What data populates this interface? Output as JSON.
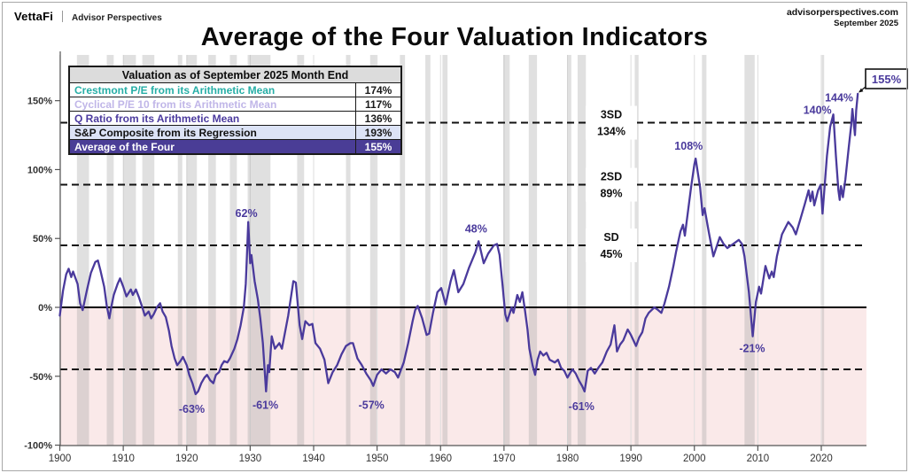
{
  "header": {
    "brand": "VettaFi",
    "brand_sub": "Advisor Perspectives",
    "site": "advisorperspectives.com",
    "date": "September 2025"
  },
  "title": "Average of the Four Valuation Indicators",
  "legend_table": {
    "title": "Valuation as of September 2025 Month End",
    "rows": [
      {
        "label": "Crestmont P/E from its Arithmetic Mean",
        "value": "174%",
        "label_color": "#26AEA6",
        "row_bg": "#FFFFFF",
        "value_color": "#1a1a1a"
      },
      {
        "label": "Cyclical P/E 10 from its Arithmetic Mean",
        "value": "117%",
        "label_color": "#C0B6E8",
        "row_bg": "#FFFFFF",
        "value_color": "#1a1a1a"
      },
      {
        "label": "Q Ratio from its Arithmetic Mean",
        "value": "136%",
        "label_color": "#4B3A9E",
        "row_bg": "#FFFFFF",
        "value_color": "#1a1a1a"
      },
      {
        "label": "S&P Composite from its Regression",
        "value": "193%",
        "label_color": "#111111",
        "row_bg": "#DCE3F6",
        "value_color": "#1a1a1a"
      },
      {
        "label": "Average of the Four",
        "value": "155%",
        "label_color": "#FFFFFF",
        "row_bg": "#4A3D96",
        "value_color": "#FFFFFF"
      }
    ]
  },
  "chart_data": {
    "type": "line",
    "title": "Average of the Four Valuation Indicators",
    "colors": {
      "line": "#4A3A9C",
      "annotation": "#4A3A9C",
      "below_zero_fill": "#FAE9E9",
      "recession_band": "rgba(160,160,160,0.32)",
      "gridline": "#DDDDDD",
      "sd_line": "#111111"
    },
    "x_axis": {
      "ticks": [
        1900,
        1910,
        1920,
        1930,
        1940,
        1950,
        1960,
        1970,
        1980,
        1990,
        2000,
        2010,
        2020
      ],
      "range": [
        1900,
        2027
      ]
    },
    "y_axis": {
      "ticks": [
        150,
        100,
        50,
        0,
        -50,
        -100
      ],
      "labels": [
        "150%",
        "100%",
        "50%",
        "0%",
        "-50%",
        "-100%"
      ],
      "range": [
        -100,
        183
      ]
    },
    "zero_line": 0,
    "sd_lines": [
      {
        "label": "3SD",
        "value_label": "134%",
        "value": 134
      },
      {
        "label": "2SD",
        "value_label": "89%",
        "value": 89
      },
      {
        "label": "SD",
        "value_label": "45%",
        "value": 45
      },
      {
        "label": null,
        "value_label": null,
        "value": -45
      }
    ],
    "recessions": [
      [
        1902.7,
        1904.6
      ],
      [
        1907.4,
        1908.5
      ],
      [
        1910.0,
        1912.0
      ],
      [
        1913.0,
        1914.9
      ],
      [
        1918.6,
        1919.3
      ],
      [
        1920.0,
        1921.6
      ],
      [
        1923.4,
        1924.6
      ],
      [
        1926.8,
        1927.9
      ],
      [
        1929.6,
        1933.2
      ],
      [
        1937.4,
        1938.5
      ],
      [
        1945.1,
        1945.8
      ],
      [
        1948.9,
        1949.9
      ],
      [
        1953.6,
        1954.4
      ],
      [
        1957.6,
        1958.4
      ],
      [
        1960.3,
        1961.1
      ],
      [
        1969.9,
        1970.9
      ],
      [
        1973.9,
        1975.2
      ],
      [
        1980.0,
        1980.6
      ],
      [
        1981.6,
        1982.9
      ],
      [
        1990.6,
        1991.2
      ],
      [
        2001.2,
        2001.9
      ],
      [
        2007.9,
        2009.5
      ],
      [
        2020.1,
        2020.4
      ]
    ],
    "annotations": [
      {
        "text": "62%",
        "x": 1929.4,
        "y": 68
      },
      {
        "text": "-63%",
        "x": 1920.8,
        "y": -74
      },
      {
        "text": "-61%",
        "x": 1932.4,
        "y": -71
      },
      {
        "text": "-57%",
        "x": 1949.1,
        "y": -71
      },
      {
        "text": "48%",
        "x": 1965.6,
        "y": 57
      },
      {
        "text": "-61%",
        "x": 1982.2,
        "y": -72
      },
      {
        "text": "108%",
        "x": 1999.1,
        "y": 117
      },
      {
        "text": "-21%",
        "x": 2009.1,
        "y": -30
      },
      {
        "text": "140%",
        "x": 2019.4,
        "y": 143
      },
      {
        "text": "144%",
        "x": 2022.8,
        "y": 152
      }
    ],
    "callout": {
      "text": "155%"
    },
    "series": [
      {
        "name": "Average of the Four",
        "color": "#4A3A9C",
        "points": [
          [
            1900,
            -6
          ],
          [
            1900.5,
            12
          ],
          [
            1901,
            24
          ],
          [
            1901.4,
            28
          ],
          [
            1901.8,
            22
          ],
          [
            1902.1,
            26
          ],
          [
            1902.8,
            17
          ],
          [
            1903.2,
            3
          ],
          [
            1903.6,
            -2
          ],
          [
            1904.3,
            13
          ],
          [
            1904.9,
            25
          ],
          [
            1905.6,
            33
          ],
          [
            1906,
            34
          ],
          [
            1906.4,
            27
          ],
          [
            1907,
            15
          ],
          [
            1907.4,
            1
          ],
          [
            1907.8,
            -8
          ],
          [
            1908.1,
            0
          ],
          [
            1908.5,
            9
          ],
          [
            1909.1,
            17
          ],
          [
            1909.5,
            21
          ],
          [
            1910,
            15
          ],
          [
            1910.5,
            8
          ],
          [
            1911.2,
            13
          ],
          [
            1911.5,
            9
          ],
          [
            1912,
            13
          ],
          [
            1912.5,
            7
          ],
          [
            1913,
            0
          ],
          [
            1913.4,
            -6
          ],
          [
            1914,
            -3
          ],
          [
            1914.4,
            -8
          ],
          [
            1914.8,
            -5
          ],
          [
            1915.3,
            0
          ],
          [
            1915.8,
            3
          ],
          [
            1916.2,
            -3
          ],
          [
            1916.7,
            -7
          ],
          [
            1917.2,
            -17
          ],
          [
            1917.6,
            -28
          ],
          [
            1918.1,
            -37
          ],
          [
            1918.5,
            -42
          ],
          [
            1919,
            -39
          ],
          [
            1919.4,
            -36
          ],
          [
            1920,
            -42
          ],
          [
            1920.4,
            -49
          ],
          [
            1920.9,
            -55
          ],
          [
            1921.4,
            -63
          ],
          [
            1921.8,
            -61
          ],
          [
            1922.3,
            -55
          ],
          [
            1922.8,
            -51
          ],
          [
            1923.2,
            -49
          ],
          [
            1923.7,
            -53
          ],
          [
            1924.2,
            -55
          ],
          [
            1924.6,
            -49
          ],
          [
            1925.1,
            -47
          ],
          [
            1925.5,
            -42
          ],
          [
            1925.9,
            -39
          ],
          [
            1926.4,
            -40
          ],
          [
            1926.8,
            -37
          ],
          [
            1927.5,
            -30
          ],
          [
            1928,
            -23
          ],
          [
            1928.5,
            -13
          ],
          [
            1929,
            0
          ],
          [
            1929.3,
            17
          ],
          [
            1929.5,
            39
          ],
          [
            1929.7,
            62
          ],
          [
            1929.9,
            41
          ],
          [
            1930,
            32
          ],
          [
            1930.2,
            38
          ],
          [
            1930.7,
            19
          ],
          [
            1931.2,
            6
          ],
          [
            1931.6,
            -8
          ],
          [
            1932,
            -26
          ],
          [
            1932.5,
            -61
          ],
          [
            1932.8,
            -42
          ],
          [
            1933,
            -47
          ],
          [
            1933.4,
            -21
          ],
          [
            1933.9,
            -30
          ],
          [
            1934.6,
            -26
          ],
          [
            1935,
            -30
          ],
          [
            1936,
            -6
          ],
          [
            1936.8,
            19
          ],
          [
            1937.2,
            18
          ],
          [
            1937.8,
            -13
          ],
          [
            1938.2,
            -23
          ],
          [
            1938.7,
            -10
          ],
          [
            1939.3,
            -13
          ],
          [
            1939.8,
            -12
          ],
          [
            1940.3,
            -26
          ],
          [
            1941,
            -30
          ],
          [
            1941.7,
            -38
          ],
          [
            1942.3,
            -55
          ],
          [
            1943,
            -47
          ],
          [
            1943.7,
            -42
          ],
          [
            1944.4,
            -34
          ],
          [
            1945.1,
            -28
          ],
          [
            1945.8,
            -26
          ],
          [
            1946.2,
            -26
          ],
          [
            1946.9,
            -37
          ],
          [
            1947.6,
            -42
          ],
          [
            1948.3,
            -48
          ],
          [
            1949,
            -53
          ],
          [
            1949.4,
            -57
          ],
          [
            1950,
            -49
          ],
          [
            1950.7,
            -45
          ],
          [
            1951.4,
            -48
          ],
          [
            1952.1,
            -45
          ],
          [
            1952.8,
            -47
          ],
          [
            1953.3,
            -51
          ],
          [
            1954.2,
            -40
          ],
          [
            1954.9,
            -26
          ],
          [
            1955.6,
            -10
          ],
          [
            1956,
            -2
          ],
          [
            1956.4,
            1
          ],
          [
            1957.1,
            -8
          ],
          [
            1957.8,
            -20
          ],
          [
            1958.2,
            -19
          ],
          [
            1958.8,
            -4
          ],
          [
            1959.5,
            11
          ],
          [
            1960.1,
            14
          ],
          [
            1960.8,
            2
          ],
          [
            1961.6,
            19
          ],
          [
            1962.1,
            27
          ],
          [
            1962.8,
            11
          ],
          [
            1963.6,
            17
          ],
          [
            1964.5,
            29
          ],
          [
            1965.5,
            40
          ],
          [
            1966,
            48
          ],
          [
            1966.8,
            32
          ],
          [
            1967.5,
            39
          ],
          [
            1968.4,
            45
          ],
          [
            1968.9,
            46
          ],
          [
            1969.3,
            38
          ],
          [
            1969.8,
            15
          ],
          [
            1970.2,
            -5
          ],
          [
            1970.5,
            -10
          ],
          [
            1971.2,
            0
          ],
          [
            1971.5,
            -4
          ],
          [
            1972.1,
            9
          ],
          [
            1972.5,
            4
          ],
          [
            1972.9,
            11
          ],
          [
            1973.3,
            -2
          ],
          [
            1973.7,
            -16
          ],
          [
            1974,
            -30
          ],
          [
            1974.5,
            -42
          ],
          [
            1974.9,
            -49
          ],
          [
            1975.3,
            -38
          ],
          [
            1975.7,
            -32
          ],
          [
            1976.2,
            -35
          ],
          [
            1976.7,
            -33
          ],
          [
            1977.2,
            -38
          ],
          [
            1978,
            -40
          ],
          [
            1978.5,
            -38
          ],
          [
            1979,
            -44
          ],
          [
            1979.5,
            -46
          ],
          [
            1980,
            -51
          ],
          [
            1980.5,
            -47
          ],
          [
            1980.8,
            -45
          ],
          [
            1981.3,
            -48
          ],
          [
            1981.8,
            -53
          ],
          [
            1982.3,
            -57
          ],
          [
            1982.7,
            -61
          ],
          [
            1983.2,
            -46
          ],
          [
            1983.7,
            -44
          ],
          [
            1984.3,
            -48
          ],
          [
            1985,
            -43
          ],
          [
            1985.5,
            -40
          ],
          [
            1986.2,
            -32
          ],
          [
            1986.8,
            -27
          ],
          [
            1987.4,
            -13
          ],
          [
            1987.8,
            -32
          ],
          [
            1988.3,
            -27
          ],
          [
            1988.8,
            -24
          ],
          [
            1989.5,
            -16
          ],
          [
            1990,
            -20
          ],
          [
            1990.8,
            -28
          ],
          [
            1991.3,
            -22
          ],
          [
            1991.8,
            -18
          ],
          [
            1992.3,
            -8
          ],
          [
            1992.8,
            -4
          ],
          [
            1993.7,
            0
          ],
          [
            1994.3,
            -2
          ],
          [
            1994.8,
            -4
          ],
          [
            1995.3,
            3
          ],
          [
            1996,
            15
          ],
          [
            1996.7,
            30
          ],
          [
            1997.1,
            40
          ],
          [
            1997.8,
            55
          ],
          [
            1998.2,
            60
          ],
          [
            1998.5,
            52
          ],
          [
            1999,
            70
          ],
          [
            1999.5,
            88
          ],
          [
            2000,
            104
          ],
          [
            2000.2,
            108
          ],
          [
            2000.9,
            87
          ],
          [
            2001.3,
            67
          ],
          [
            2001.6,
            72
          ],
          [
            2002.3,
            54
          ],
          [
            2003,
            37
          ],
          [
            2004,
            51
          ],
          [
            2004.6,
            46
          ],
          [
            2005.2,
            43
          ],
          [
            2005.8,
            45
          ],
          [
            2006.4,
            47
          ],
          [
            2007,
            49
          ],
          [
            2007.5,
            46
          ],
          [
            2007.9,
            37
          ],
          [
            2008.6,
            11
          ],
          [
            2009.2,
            -21
          ],
          [
            2009.7,
            4
          ],
          [
            2010.2,
            15
          ],
          [
            2010.5,
            10
          ],
          [
            2011.2,
            30
          ],
          [
            2011.8,
            21
          ],
          [
            2012.2,
            26
          ],
          [
            2012.5,
            22
          ],
          [
            2013,
            37
          ],
          [
            2013.8,
            53
          ],
          [
            2014.8,
            62
          ],
          [
            2015.5,
            58
          ],
          [
            2016,
            53
          ],
          [
            2016.7,
            64
          ],
          [
            2017.4,
            75
          ],
          [
            2018,
            85
          ],
          [
            2018.3,
            77
          ],
          [
            2018.6,
            84
          ],
          [
            2018.9,
            74
          ],
          [
            2019.5,
            85
          ],
          [
            2019.9,
            89
          ],
          [
            2020.2,
            68
          ],
          [
            2020.9,
            110
          ],
          [
            2021.4,
            131
          ],
          [
            2021.9,
            140
          ],
          [
            2022.3,
            110
          ],
          [
            2022.7,
            85
          ],
          [
            2022.9,
            78
          ],
          [
            2023.1,
            88
          ],
          [
            2023.4,
            80
          ],
          [
            2023.8,
            93
          ],
          [
            2024.3,
            115
          ],
          [
            2024.7,
            132
          ],
          [
            2024.9,
            144
          ],
          [
            2025.3,
            125
          ],
          [
            2025.5,
            143
          ],
          [
            2025.75,
            155
          ]
        ]
      }
    ]
  }
}
